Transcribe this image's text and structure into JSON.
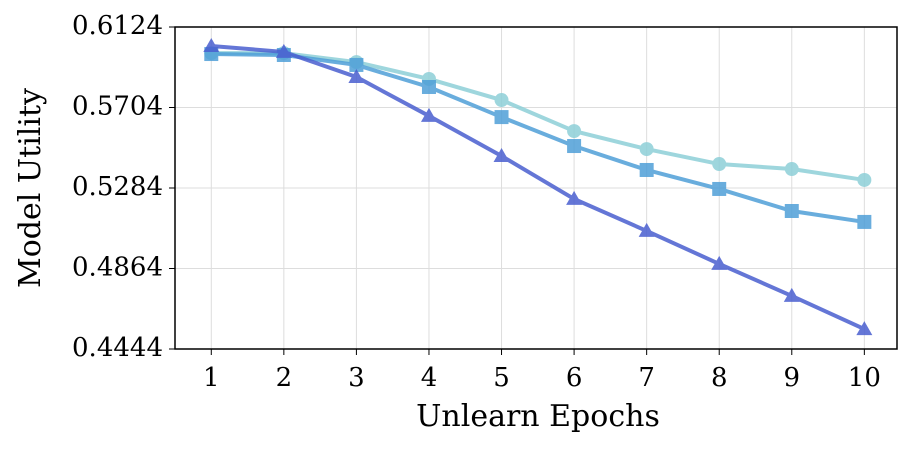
{
  "chart_data": {
    "type": "line",
    "xlabel": "Unlearn Epochs",
    "ylabel": "Model Utility",
    "x": [
      1,
      2,
      3,
      4,
      5,
      6,
      7,
      8,
      9,
      10
    ],
    "series": [
      {
        "color": "#8ecfd8",
        "marker": "circle",
        "values": [
          0.5988,
          0.5988,
          0.5941,
          0.5853,
          0.5743,
          0.5581,
          0.5487,
          0.5409,
          0.5383,
          0.5326
        ]
      },
      {
        "color": "#4f9fd8",
        "marker": "square",
        "values": [
          0.5983,
          0.5978,
          0.5926,
          0.5811,
          0.5654,
          0.5503,
          0.5378,
          0.5279,
          0.5164,
          0.5107
        ]
      },
      {
        "color": "#4a5fd0",
        "marker": "triangle",
        "values": [
          0.6025,
          0.5994,
          0.5863,
          0.566,
          0.5451,
          0.5227,
          0.506,
          0.4888,
          0.4721,
          0.4548
        ]
      }
    ],
    "xlim": [
      0.5,
      10.45
    ],
    "xticks": [
      1,
      2,
      3,
      4,
      5,
      6,
      7,
      8,
      9,
      10
    ],
    "ylim": [
      0.4444,
      0.6124
    ],
    "yticks": [
      0.4444,
      0.4864,
      0.5284,
      0.5704,
      0.6124
    ],
    "grid": true
  }
}
